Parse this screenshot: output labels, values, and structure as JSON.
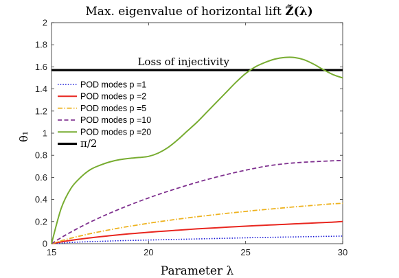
{
  "chart_data": {
    "type": "line",
    "title": "Max. eigenvalue of horizontal lift",
    "title_math": "Z̃(λ)",
    "xlabel": "Parameter λ",
    "ylabel": "θ₁",
    "xlim": [
      15,
      30
    ],
    "ylim": [
      0,
      2
    ],
    "xticks": [
      "15",
      "20",
      "25",
      "30"
    ],
    "yticks": [
      "0",
      "0.2",
      "0.4",
      "0.6",
      "0.8",
      "1",
      "1.2",
      "1.4",
      "1.6",
      "1.8",
      "2"
    ],
    "grid": false,
    "legend_position": "left",
    "annotation": {
      "text": "Loss of injectivity",
      "color": "#e8261f",
      "x": 21.8,
      "y": 1.645
    },
    "x": [
      15,
      15.5,
      16,
      16.5,
      17,
      17.5,
      18,
      18.5,
      19,
      19.5,
      20,
      20.5,
      21,
      21.5,
      22,
      22.5,
      23,
      23.5,
      24,
      24.5,
      25,
      25.5,
      26,
      26.5,
      27,
      27.5,
      28,
      28.5,
      29,
      29.5,
      30
    ],
    "series": [
      {
        "name": "POD modes p =1",
        "color": "#1515d6",
        "dash": "1.5,2.2",
        "width": 1.6,
        "values": [
          0,
          0.006,
          0.011,
          0.015,
          0.018,
          0.021,
          0.024,
          0.027,
          0.029,
          0.031,
          0.033,
          0.035,
          0.037,
          0.039,
          0.041,
          0.043,
          0.045,
          0.047,
          0.049,
          0.051,
          0.053,
          0.055,
          0.057,
          0.058,
          0.06,
          0.061,
          0.063,
          0.064,
          0.066,
          0.067,
          0.069
        ]
      },
      {
        "name": "POD modes p =2",
        "color": "#e8261f",
        "dash": "",
        "width": 2,
        "values": [
          0,
          0.016,
          0.03,
          0.042,
          0.053,
          0.063,
          0.072,
          0.081,
          0.089,
          0.096,
          0.103,
          0.11,
          0.116,
          0.122,
          0.128,
          0.134,
          0.139,
          0.144,
          0.149,
          0.154,
          0.158,
          0.163,
          0.167,
          0.171,
          0.175,
          0.179,
          0.183,
          0.187,
          0.191,
          0.195,
          0.201
        ]
      },
      {
        "name": "POD modes p =5",
        "color": "#eeb21e",
        "dash": "7,2.5,1.5,2.5",
        "width": 1.8,
        "values": [
          0,
          0.026,
          0.05,
          0.071,
          0.091,
          0.109,
          0.126,
          0.142,
          0.157,
          0.171,
          0.185,
          0.198,
          0.21,
          0.222,
          0.233,
          0.244,
          0.254,
          0.264,
          0.274,
          0.283,
          0.292,
          0.301,
          0.309,
          0.317,
          0.325,
          0.333,
          0.34,
          0.347,
          0.354,
          0.361,
          0.365
        ]
      },
      {
        "name": "POD modes p =10",
        "color": "#7e2f8e",
        "dash": "6,3.5",
        "width": 1.8,
        "values": [
          0,
          0.055,
          0.105,
          0.152,
          0.196,
          0.237,
          0.276,
          0.313,
          0.348,
          0.382,
          0.414,
          0.445,
          0.474,
          0.502,
          0.529,
          0.555,
          0.58,
          0.603,
          0.625,
          0.646,
          0.665,
          0.683,
          0.7,
          0.713,
          0.723,
          0.731,
          0.737,
          0.742,
          0.746,
          0.75,
          0.753
        ]
      },
      {
        "name": "POD modes p =20",
        "color": "#77ac30",
        "dash": "",
        "width": 2,
        "values": [
          0,
          0.32,
          0.5,
          0.6,
          0.67,
          0.71,
          0.74,
          0.76,
          0.772,
          0.78,
          0.79,
          0.82,
          0.87,
          0.94,
          1.02,
          1.1,
          1.19,
          1.28,
          1.37,
          1.46,
          1.54,
          1.6,
          1.64,
          1.67,
          1.685,
          1.685,
          1.665,
          1.625,
          1.575,
          1.53,
          1.5
        ]
      }
    ],
    "reference_line": {
      "name": "π/2",
      "y": 1.5708,
      "color": "#000000",
      "width": 3.2
    }
  }
}
